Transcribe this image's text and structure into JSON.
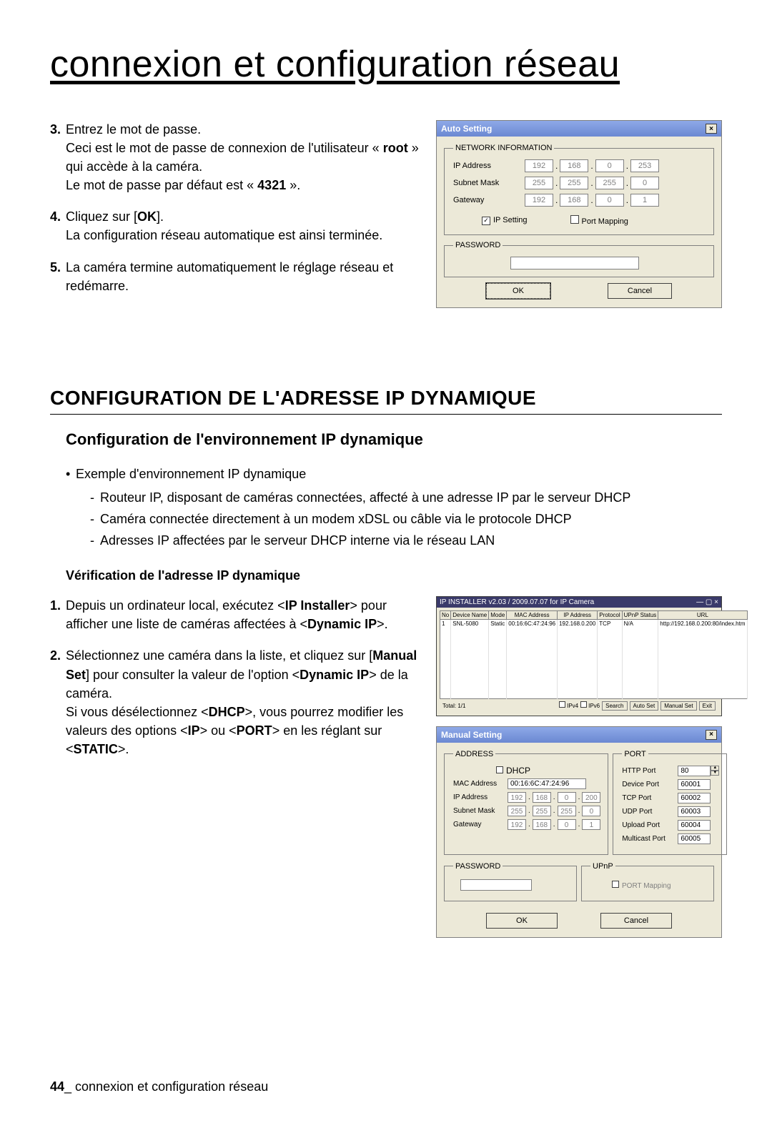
{
  "page_title": "connexion et configuration réseau",
  "steps_top": [
    {
      "num": "3.",
      "html": "Entrez le mot de passe.<br>Ceci est le mot de passe de connexion de l'utilisateur « <b>root</b> » qui accède à la caméra.<br>Le mot de passe par défaut est « <b>4321</b> »."
    },
    {
      "num": "4.",
      "html": "Cliquez sur [<b>OK</b>].<br>La configuration réseau automatique est ainsi terminée."
    },
    {
      "num": "5.",
      "html": "La caméra termine automatiquement le réglage réseau et redémarre."
    }
  ],
  "auto_setting": {
    "title": "Auto Setting",
    "groups": {
      "network": "NETWORK INFORMATION",
      "password": "PASSWORD"
    },
    "rows": {
      "ip": {
        "label": "IP Address",
        "v": [
          "192",
          "168",
          "0",
          "253"
        ]
      },
      "mask": {
        "label": "Subnet Mask",
        "v": [
          "255",
          "255",
          "255",
          "0"
        ]
      },
      "gw": {
        "label": "Gateway",
        "v": [
          "192",
          "168",
          "0",
          "1"
        ]
      }
    },
    "ip_setting": "IP Setting",
    "port_mapping": "Port Mapping",
    "ok": "OK",
    "cancel": "Cancel"
  },
  "section_h1": "CONFIGURATION DE L'ADRESSE IP DYNAMIQUE",
  "section_h2": "Configuration de l'environnement IP dynamique",
  "bullet_lead": "Exemple d'environnement IP dynamique",
  "dashes": [
    "Routeur IP, disposant de caméras connectées, affecté à une adresse IP par le serveur DHCP",
    "Caméra connectée directement à un modem xDSL ou câble via le protocole DHCP",
    "Adresses IP affectées par le serveur DHCP interne via le réseau LAN"
  ],
  "section_h3": "Vérification de l'adresse IP dynamique",
  "steps_bottom": [
    {
      "num": "1.",
      "html": "Depuis un ordinateur local, exécutez &lt;<b>IP Installer</b>&gt; pour afficher une liste de caméras affectées à &lt;<b>Dynamic IP</b>&gt;."
    },
    {
      "num": "2.",
      "html": "Sélectionnez une caméra dans la liste, et cliquez sur [<b>Manual Set</b>] pour consulter la valeur de l'option &lt;<b>Dynamic IP</b>&gt; de la caméra.<br>Si vous désélectionnez &lt;<b>DHCP</b>&gt;, vous pourrez modifier les valeurs des options &lt;<b>IP</b>&gt; ou &lt;<b>PORT</b>&gt; en les réglant sur &lt;<b>STATIC</b>&gt;."
    }
  ],
  "installer": {
    "title": "IP INSTALLER v2.03 / 2009.07.07 for IP Camera",
    "headers": [
      "No",
      "Device Name",
      "Mode",
      "MAC Address",
      "IP Address",
      "Protocol",
      "UPnP Status",
      "URL"
    ],
    "row": [
      "1",
      "SNL-5080",
      "Static",
      "00:16:6C:47:24:96",
      "192.168.0.200",
      "TCP",
      "N/A",
      "http://192.168.0.200:80/index.htm"
    ],
    "foot_left": "Total: 1/1",
    "ipv4": "IPv4",
    "ipv6": "IPv6",
    "search": "Search",
    "autoset": "Auto Set",
    "manualset": "Manual Set",
    "exit": "Exit"
  },
  "manual": {
    "title": "Manual Setting",
    "address": "ADDRESS",
    "port": "PORT",
    "dhcp": "DHCP",
    "mac": {
      "label": "MAC Address",
      "v": "00:16:6C:47:24:96"
    },
    "ip": {
      "label": "IP Address",
      "v": [
        "192",
        "168",
        "0",
        "200"
      ]
    },
    "mask": {
      "label": "Subnet Mask",
      "v": [
        "255",
        "255",
        "255",
        "0"
      ]
    },
    "gw": {
      "label": "Gateway",
      "v": [
        "192",
        "168",
        "0",
        "1"
      ]
    },
    "ports": {
      "http": {
        "label": "HTTP Port",
        "v": "80"
      },
      "device": {
        "label": "Device Port",
        "v": "60001"
      },
      "tcp": {
        "label": "TCP Port",
        "v": "60002"
      },
      "udp": {
        "label": "UDP Port",
        "v": "60003"
      },
      "upload": {
        "label": "Upload Port",
        "v": "60004"
      },
      "multicast": {
        "label": "Multicast Port",
        "v": "60005"
      }
    },
    "password": "PASSWORD",
    "upnp": "UPnP",
    "port_mapping": "PORT Mapping",
    "ok": "OK",
    "cancel": "Cancel"
  },
  "footer": {
    "page": "44",
    "text": "_ connexion et configuration réseau"
  }
}
